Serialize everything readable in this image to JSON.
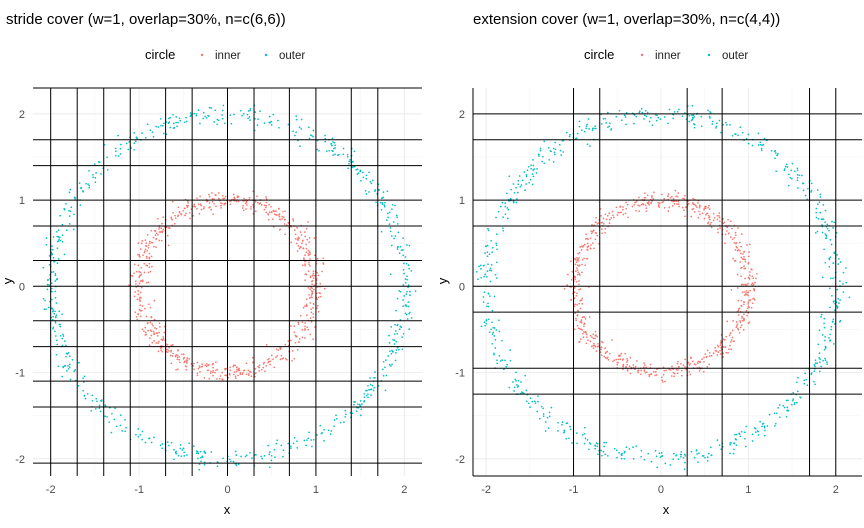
{
  "chart_data": [
    {
      "type": "scatter",
      "title": "stride cover (w=1, overlap=30%, n=c(6,6))",
      "xlabel": "x",
      "ylabel": "y",
      "xlim": [
        -2.2,
        2.2
      ],
      "ylim": [
        -2.2,
        2.3
      ],
      "xticks": [
        -2,
        -1,
        0,
        1,
        2
      ],
      "yticks": [
        -2,
        -1,
        0,
        1,
        2
      ],
      "xtick_labels": [
        "-2",
        "-1",
        "0",
        "1",
        "2"
      ],
      "ytick_labels": [
        "-2",
        "-1",
        "0",
        "1",
        "2"
      ],
      "grid": true,
      "legend": {
        "title": "circle",
        "position": "top",
        "entries": [
          {
            "label": "inner",
            "color": "#F8766D"
          },
          {
            "label": "outer",
            "color": "#00BFC4"
          }
        ]
      },
      "series": [
        {
          "name": "inner",
          "color": "#F8766D",
          "shape": "noisy-circle",
          "radius": 1.0,
          "noise": 0.09,
          "n": 700
        },
        {
          "name": "outer",
          "color": "#00BFC4",
          "shape": "noisy-circle",
          "radius": 2.0,
          "noise": 0.09,
          "n": 700
        }
      ],
      "cover": {
        "vertical_x": [
          -2.0,
          -1.7,
          -1.4,
          -1.1,
          -0.7,
          -0.4,
          0.0,
          0.3,
          0.7,
          1.0,
          1.4,
          1.7
        ],
        "horizontal_y": [
          -2.05,
          -1.4,
          -1.1,
          -0.7,
          -0.4,
          0.0,
          0.3,
          0.7,
          1.0,
          1.4,
          1.7,
          2.3
        ]
      }
    },
    {
      "type": "scatter",
      "title": "extension cover (w=1, overlap=30%, n=c(4,4))",
      "xlabel": "x",
      "ylabel": "y",
      "xlim": [
        -2.15,
        2.3
      ],
      "ylim": [
        -2.2,
        2.3
      ],
      "xticks": [
        -2,
        -1,
        0,
        1,
        2
      ],
      "yticks": [
        -2,
        -1,
        0,
        1,
        2
      ],
      "xtick_labels": [
        "-2",
        "-1",
        "0",
        "1",
        "2"
      ],
      "ytick_labels": [
        "-2",
        "-1",
        "0",
        "1",
        "2"
      ],
      "grid": true,
      "legend": {
        "title": "circle",
        "position": "top",
        "entries": [
          {
            "label": "inner",
            "color": "#F8766D"
          },
          {
            "label": "outer",
            "color": "#00BFC4"
          }
        ]
      },
      "series": [
        {
          "name": "inner",
          "color": "#F8766D",
          "shape": "noisy-circle",
          "radius": 1.0,
          "noise": 0.09,
          "n": 700
        },
        {
          "name": "outer",
          "color": "#00BFC4",
          "shape": "noisy-circle",
          "radius": 2.0,
          "noise": 0.09,
          "n": 700
        }
      ],
      "cover": {
        "vertical_x": [
          -2.15,
          -1.0,
          -0.7,
          0.3,
          0.7,
          1.7,
          2.0
        ],
        "horizontal_y": [
          -2.2,
          -1.25,
          -0.95,
          -0.3,
          0.0,
          0.7,
          1.0,
          1.7,
          2.0
        ]
      }
    }
  ]
}
